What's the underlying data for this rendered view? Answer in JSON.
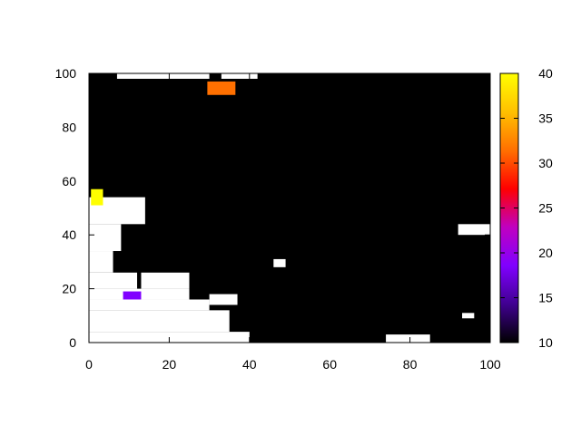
{
  "chart_data": {
    "type": "heatmap",
    "title": "",
    "xlabel": "",
    "ylabel": "",
    "xlim": [
      0,
      100
    ],
    "ylim": [
      0,
      100
    ],
    "x_ticks": [
      "0",
      "20",
      "40",
      "60",
      "80",
      "100"
    ],
    "y_ticks": [
      "0",
      "20",
      "40",
      "60",
      "80",
      "100"
    ],
    "colorbar": {
      "range": [
        10,
        40
      ],
      "ticks": [
        "10",
        "15",
        "20",
        "25",
        "30",
        "35",
        "40"
      ],
      "palette": [
        "#000000",
        "#400090",
        "#8000ff",
        "#c000c0",
        "#ff0000",
        "#ff7000",
        "#ffc000",
        "#ffff00"
      ]
    },
    "background_value_color": "#000000",
    "missing_color": "#ffffff",
    "white_regions": [
      {
        "x": [
          0,
          40
        ],
        "y": [
          0,
          4
        ],
        "desc": "bottom-left base"
      },
      {
        "x": [
          0,
          35
        ],
        "y": [
          4,
          12
        ]
      },
      {
        "x": [
          0,
          30
        ],
        "y": [
          12,
          16
        ]
      },
      {
        "x": [
          0,
          25
        ],
        "y": [
          16,
          20
        ]
      },
      {
        "x": [
          0,
          12
        ],
        "y": [
          20,
          26
        ]
      },
      {
        "x": [
          0,
          6
        ],
        "y": [
          26,
          34
        ]
      },
      {
        "x": [
          0,
          8
        ],
        "y": [
          34,
          44
        ]
      },
      {
        "x": [
          0,
          14
        ],
        "y": [
          44,
          54
        ]
      },
      {
        "x": [
          13,
          25
        ],
        "y": [
          20,
          26
        ]
      },
      {
        "x": [
          30,
          37
        ],
        "y": [
          14,
          18
        ]
      },
      {
        "x": [
          7,
          30
        ],
        "y": [
          98,
          100
        ]
      },
      {
        "x": [
          33,
          42
        ],
        "y": [
          98,
          100
        ]
      },
      {
        "x": [
          46,
          49
        ],
        "y": [
          28,
          31
        ]
      },
      {
        "x": [
          92,
          100
        ],
        "y": [
          40,
          44
        ]
      },
      {
        "x": [
          74,
          85
        ],
        "y": [
          0,
          3
        ]
      },
      {
        "x": [
          93,
          96
        ],
        "y": [
          9,
          11
        ]
      }
    ],
    "colored_regions": [
      {
        "x": [
          0.5,
          3.5
        ],
        "y": [
          51,
          57
        ],
        "value": 40
      },
      {
        "x": [
          29.5,
          36.5
        ],
        "y": [
          92,
          97
        ],
        "value": 30
      },
      {
        "x": [
          8.5,
          13
        ],
        "y": [
          16,
          19
        ],
        "value": 18
      }
    ]
  }
}
